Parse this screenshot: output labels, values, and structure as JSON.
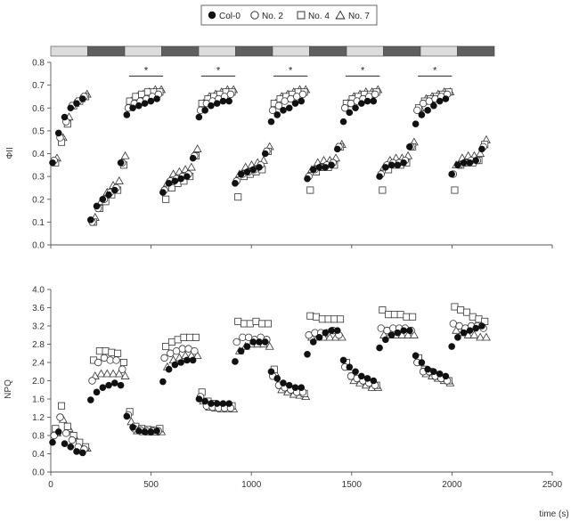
{
  "chart_data": [
    {
      "type": "scatter",
      "ylabel": "ΦII",
      "xlabel": "",
      "xlim": [
        0,
        2500
      ],
      "ylim": [
        0,
        0.8
      ],
      "yticks": [
        "0.0",
        "0.1",
        "0.2",
        "0.3",
        "0.4",
        "0.5",
        "0.6",
        "0.7",
        "0.8"
      ],
      "light_bar": {
        "pattern": [
          "light",
          "dark",
          "light",
          "dark",
          "light",
          "dark",
          "light",
          "dark",
          "light",
          "dark",
          "light",
          "dark"
        ],
        "colors": {
          "light": "#dcdcdc",
          "dark": "#5f5f5f"
        }
      },
      "significance_marks": [
        {
          "x_start": 390,
          "x_end": 560,
          "y": 0.74,
          "label": "*"
        },
        {
          "x_start": 750,
          "x_end": 920,
          "y": 0.74,
          "label": "*"
        },
        {
          "x_start": 1110,
          "x_end": 1280,
          "y": 0.74,
          "label": "*"
        },
        {
          "x_start": 1470,
          "x_end": 1640,
          "y": 0.74,
          "label": "*"
        },
        {
          "x_start": 1830,
          "x_end": 2000,
          "y": 0.74,
          "label": "*"
        }
      ],
      "x": [
        20,
        50,
        80,
        110,
        140,
        170,
        210,
        240,
        270,
        300,
        330,
        360,
        390,
        420,
        450,
        480,
        510,
        540,
        570,
        600,
        630,
        660,
        690,
        720,
        750,
        780,
        810,
        840,
        870,
        900,
        930,
        960,
        990,
        1020,
        1050,
        1080,
        1110,
        1140,
        1170,
        1200,
        1230,
        1260,
        1290,
        1320,
        1350,
        1380,
        1410,
        1440,
        1470,
        1500,
        1530,
        1560,
        1590,
        1620,
        1650,
        1680,
        1710,
        1740,
        1770,
        1800,
        1830,
        1860,
        1890,
        1920,
        1950,
        1980,
        2010,
        2040,
        2070,
        2100,
        2130,
        2160
      ],
      "series": [
        {
          "name": "Col-0",
          "marker": "filled-circle",
          "values": [
            0.36,
            0.49,
            0.56,
            0.6,
            0.62,
            0.64,
            0.11,
            0.17,
            0.2,
            0.22,
            0.24,
            0.36,
            0.57,
            0.6,
            0.61,
            0.62,
            0.63,
            0.64,
            0.23,
            0.27,
            0.28,
            0.29,
            0.3,
            0.38,
            0.56,
            0.59,
            0.61,
            0.62,
            0.63,
            0.63,
            0.27,
            0.31,
            0.32,
            0.33,
            0.34,
            0.4,
            0.54,
            0.57,
            0.59,
            0.6,
            0.62,
            0.63,
            0.29,
            0.33,
            0.34,
            0.34,
            0.35,
            0.42,
            0.54,
            0.58,
            0.6,
            0.62,
            0.63,
            0.63,
            0.3,
            0.34,
            0.35,
            0.35,
            0.36,
            0.43,
            0.53,
            0.57,
            0.59,
            0.61,
            0.63,
            0.64,
            0.31,
            0.35,
            0.36,
            0.36,
            0.37,
            0.42
          ]
        },
        {
          "name": "No. 2",
          "marker": "open-circle",
          "values": [
            0.37,
            0.47,
            0.54,
            0.61,
            0.63,
            0.65,
            0.1,
            0.16,
            0.2,
            0.23,
            0.25,
            0.36,
            0.6,
            0.62,
            0.63,
            0.64,
            0.65,
            0.66,
            0.24,
            0.28,
            0.29,
            0.3,
            0.31,
            0.39,
            0.59,
            0.62,
            0.63,
            0.64,
            0.65,
            0.66,
            0.28,
            0.31,
            0.32,
            0.33,
            0.35,
            0.41,
            0.59,
            0.61,
            0.63,
            0.64,
            0.65,
            0.66,
            0.3,
            0.33,
            0.34,
            0.35,
            0.36,
            0.43,
            0.6,
            0.62,
            0.63,
            0.64,
            0.65,
            0.66,
            0.31,
            0.35,
            0.36,
            0.36,
            0.37,
            0.43,
            0.59,
            0.62,
            0.63,
            0.64,
            0.65,
            0.66,
            0.31,
            0.35,
            0.36,
            0.37,
            0.37,
            0.43
          ]
        },
        {
          "name": "No. 4",
          "marker": "open-square",
          "values": [
            0.36,
            0.45,
            0.53,
            0.61,
            0.63,
            0.65,
            0.1,
            0.16,
            0.19,
            0.22,
            0.24,
            0.35,
            0.63,
            0.65,
            0.66,
            0.67,
            0.67,
            0.67,
            0.2,
            0.25,
            0.27,
            0.28,
            0.3,
            0.39,
            0.62,
            0.64,
            0.65,
            0.66,
            0.67,
            0.67,
            0.21,
            0.3,
            0.31,
            0.32,
            0.33,
            0.41,
            0.62,
            0.64,
            0.65,
            0.66,
            0.67,
            0.67,
            0.24,
            0.32,
            0.34,
            0.34,
            0.35,
            0.43,
            0.62,
            0.64,
            0.65,
            0.66,
            0.66,
            0.67,
            0.24,
            0.33,
            0.35,
            0.35,
            0.36,
            0.43,
            0.6,
            0.63,
            0.64,
            0.65,
            0.66,
            0.67,
            0.24,
            0.35,
            0.36,
            0.36,
            0.37,
            0.44
          ]
        },
        {
          "name": "No. 7",
          "marker": "open-triangle",
          "values": [
            0.38,
            0.47,
            0.56,
            0.62,
            0.64,
            0.66,
            0.12,
            0.19,
            0.23,
            0.26,
            0.28,
            0.39,
            0.63,
            0.65,
            0.66,
            0.67,
            0.68,
            0.68,
            0.27,
            0.31,
            0.32,
            0.33,
            0.34,
            0.42,
            0.62,
            0.65,
            0.66,
            0.67,
            0.68,
            0.68,
            0.31,
            0.34,
            0.35,
            0.36,
            0.37,
            0.43,
            0.62,
            0.65,
            0.66,
            0.67,
            0.68,
            0.68,
            0.33,
            0.36,
            0.37,
            0.37,
            0.38,
            0.44,
            0.62,
            0.65,
            0.66,
            0.67,
            0.67,
            0.68,
            0.34,
            0.37,
            0.38,
            0.38,
            0.39,
            0.45,
            0.6,
            0.64,
            0.65,
            0.66,
            0.67,
            0.67,
            0.35,
            0.38,
            0.39,
            0.39,
            0.4,
            0.46
          ]
        }
      ]
    },
    {
      "type": "scatter",
      "ylabel": "NPQ",
      "xlabel": "time (s)",
      "xlim": [
        0,
        2500
      ],
      "ylim": [
        0,
        4.0
      ],
      "xticks": [
        "0",
        "500",
        "1000",
        "1500",
        "2000",
        "2500"
      ],
      "yticks": [
        "0.0",
        "0.4",
        "0.8",
        "1.2",
        "1.6",
        "2.0",
        "2.4",
        "2.8",
        "3.2",
        "3.6",
        "4.0"
      ],
      "x": [
        20,
        50,
        80,
        110,
        140,
        170,
        210,
        240,
        270,
        300,
        330,
        360,
        390,
        420,
        450,
        480,
        510,
        540,
        570,
        600,
        630,
        660,
        690,
        720,
        750,
        780,
        810,
        840,
        870,
        900,
        930,
        960,
        990,
        1020,
        1050,
        1080,
        1110,
        1140,
        1170,
        1200,
        1230,
        1260,
        1290,
        1320,
        1350,
        1380,
        1410,
        1440,
        1470,
        1500,
        1530,
        1560,
        1590,
        1620,
        1650,
        1680,
        1710,
        1740,
        1770,
        1800,
        1830,
        1860,
        1890,
        1920,
        1950,
        1980,
        2010,
        2040,
        2070,
        2100,
        2130,
        2160
      ],
      "series": [
        {
          "name": "Col-0",
          "marker": "filled-circle",
          "values": [
            0.65,
            0.88,
            0.62,
            0.55,
            0.45,
            0.42,
            1.58,
            1.75,
            1.85,
            1.9,
            1.95,
            1.9,
            1.22,
            0.98,
            0.9,
            0.88,
            0.88,
            0.9,
            1.98,
            2.25,
            2.35,
            2.4,
            2.45,
            2.45,
            1.6,
            1.55,
            1.5,
            1.5,
            1.5,
            1.5,
            2.42,
            2.65,
            2.75,
            2.85,
            2.85,
            2.85,
            2.2,
            2.05,
            1.95,
            1.9,
            1.85,
            1.85,
            2.58,
            2.85,
            2.95,
            3.05,
            3.1,
            3.1,
            2.45,
            2.3,
            2.2,
            2.1,
            2.05,
            2.0,
            2.72,
            2.9,
            3.0,
            3.05,
            3.1,
            3.1,
            2.55,
            2.4,
            2.25,
            2.2,
            2.15,
            2.1,
            2.75,
            2.95,
            3.05,
            3.1,
            3.15,
            3.2
          ]
        },
        {
          "name": "No. 2",
          "marker": "open-circle",
          "values": [
            0.8,
            1.2,
            0.85,
            0.7,
            0.55,
            0.5,
            2.0,
            2.4,
            2.5,
            2.45,
            2.45,
            2.25,
            1.25,
            0.95,
            0.92,
            0.9,
            0.9,
            0.9,
            2.5,
            2.6,
            2.65,
            2.7,
            2.7,
            2.65,
            1.65,
            1.45,
            1.42,
            1.4,
            1.4,
            1.4,
            2.85,
            2.95,
            2.95,
            2.9,
            2.95,
            2.9,
            2.1,
            1.9,
            1.85,
            1.8,
            1.75,
            1.75,
            3.0,
            3.05,
            3.05,
            3.05,
            3.1,
            3.0,
            2.3,
            2.1,
            2.05,
            2.0,
            1.95,
            1.9,
            3.15,
            3.1,
            3.15,
            3.15,
            3.15,
            3.1,
            2.4,
            2.2,
            2.2,
            2.1,
            2.05,
            2.0,
            3.25,
            3.2,
            3.15,
            3.2,
            3.2,
            3.15
          ]
        },
        {
          "name": "No. 4",
          "marker": "open-square",
          "values": [
            0.95,
            1.45,
            1.0,
            0.8,
            0.65,
            0.55,
            2.45,
            2.65,
            2.65,
            2.62,
            2.6,
            2.4,
            1.32,
            1.0,
            0.95,
            0.93,
            0.92,
            0.95,
            2.75,
            2.85,
            2.9,
            2.95,
            2.95,
            2.95,
            1.75,
            1.55,
            1.5,
            1.45,
            1.45,
            1.45,
            3.3,
            3.25,
            3.25,
            3.3,
            3.25,
            3.25,
            2.25,
            1.9,
            1.85,
            1.8,
            1.75,
            1.72,
            3.42,
            3.4,
            3.35,
            3.35,
            3.35,
            3.35,
            2.4,
            2.1,
            2.05,
            2.0,
            1.95,
            1.9,
            3.55,
            3.45,
            3.45,
            3.45,
            3.4,
            3.4,
            2.5,
            2.25,
            2.2,
            2.1,
            2.05,
            2.0,
            3.62,
            3.55,
            3.5,
            3.4,
            3.35,
            3.3
          ]
        },
        {
          "name": "No. 7",
          "marker": "open-triangle",
          "values": [
            0.85,
            1.15,
            0.95,
            0.75,
            0.6,
            0.52,
            2.1,
            2.15,
            2.15,
            2.15,
            2.15,
            2.1,
            1.1,
            0.9,
            0.88,
            0.87,
            0.87,
            0.88,
            2.3,
            2.45,
            2.5,
            2.55,
            2.55,
            2.55,
            1.55,
            1.42,
            1.4,
            1.38,
            1.38,
            1.38,
            2.65,
            2.75,
            2.8,
            2.8,
            2.8,
            2.75,
            2.15,
            1.8,
            1.75,
            1.7,
            1.68,
            1.65,
            2.95,
            2.95,
            2.95,
            2.95,
            2.95,
            2.95,
            2.3,
            2.0,
            1.95,
            1.9,
            1.85,
            1.85,
            3.0,
            3.0,
            3.0,
            3.0,
            3.0,
            3.0,
            2.4,
            2.15,
            2.1,
            2.05,
            2.0,
            1.95,
            3.1,
            3.05,
            3.0,
            3.0,
            2.95,
            2.95
          ]
        }
      ]
    }
  ]
}
